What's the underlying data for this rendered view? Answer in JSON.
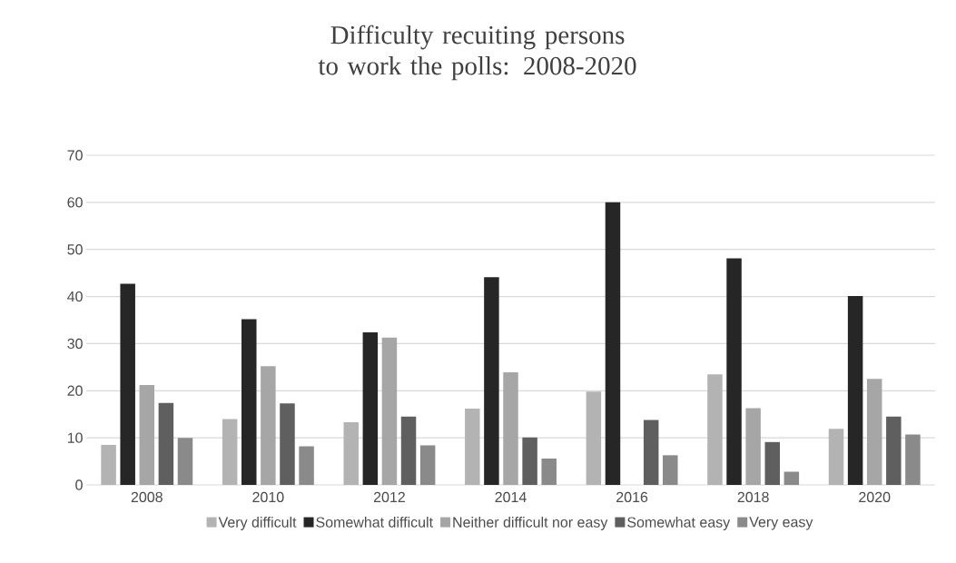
{
  "chart_data": {
    "type": "bar",
    "title": "Difficulty recuiting persons to work the polls: 2008-2020",
    "categories": [
      "2008",
      "2010",
      "2012",
      "2014",
      "2016",
      "2018",
      "2020"
    ],
    "series": [
      {
        "name": "Very difficult",
        "color": "#b3b3b3",
        "values": [
          8.5,
          14.0,
          13.3,
          16.2,
          19.8,
          23.5,
          11.9
        ]
      },
      {
        "name": "Somewhat difficult",
        "color": "#262626",
        "values": [
          42.7,
          35.2,
          32.4,
          44.1,
          60.0,
          48.1,
          40.1
        ]
      },
      {
        "name": "Neither difficult nor easy",
        "color": "#a6a6a6",
        "values": [
          21.2,
          25.2,
          31.3,
          23.9,
          null,
          16.3,
          22.5
        ]
      },
      {
        "name": "Somewhat easy",
        "color": "#5f5f5f",
        "values": [
          17.4,
          17.3,
          14.5,
          10.1,
          13.8,
          9.1,
          14.5
        ]
      },
      {
        "name": "Very easy",
        "color": "#8a8a8a",
        "values": [
          10.0,
          8.2,
          8.4,
          5.6,
          6.3,
          2.8,
          10.7
        ]
      }
    ],
    "ylim": [
      0,
      70
    ],
    "yticks": [
      0,
      10,
      20,
      30,
      40,
      50,
      60,
      70
    ],
    "grid": "y",
    "legend": "bottom"
  }
}
